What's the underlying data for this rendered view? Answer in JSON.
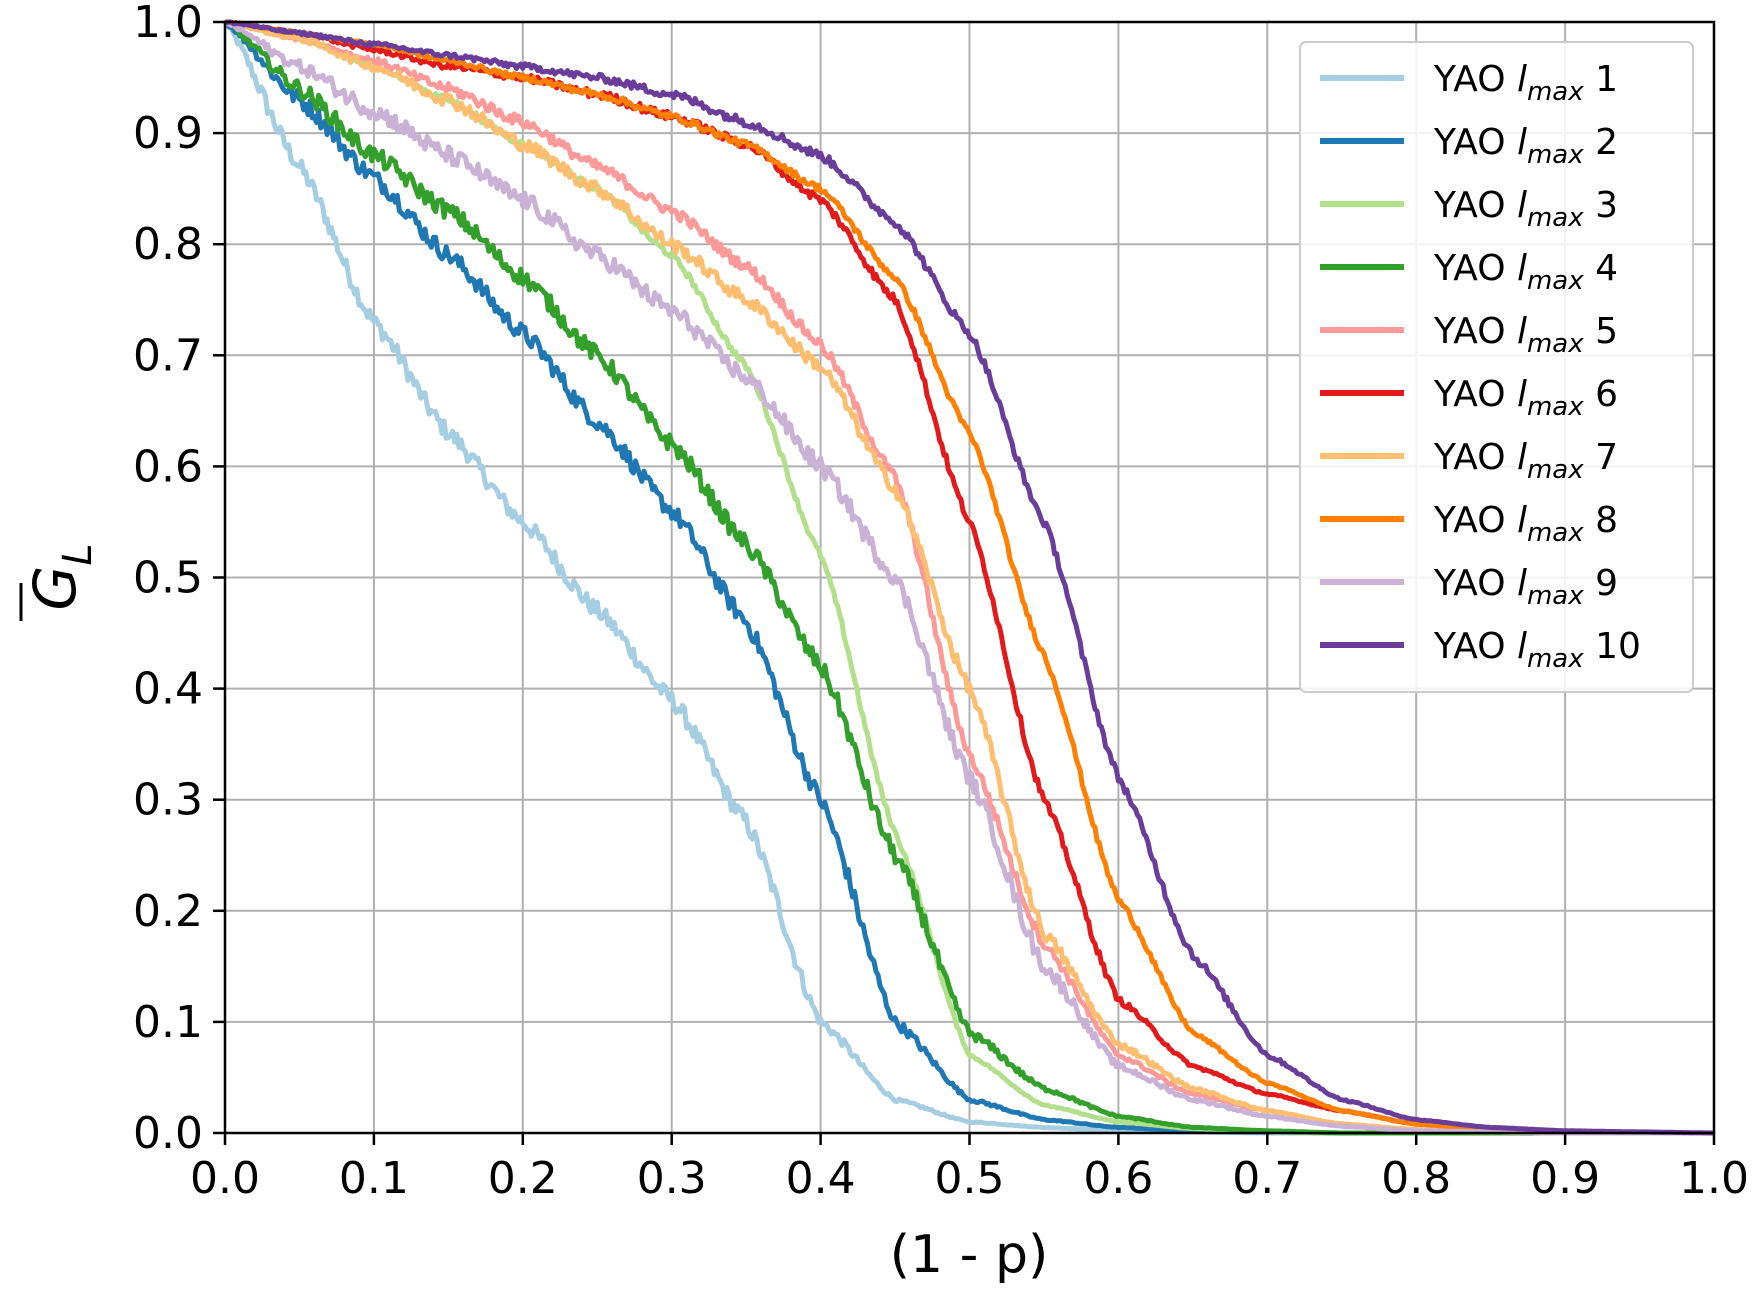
{
  "chart_data": {
    "type": "line",
    "xlabel": "(1 - p)",
    "ylabel_main": "G",
    "ylabel_sub": "L",
    "xlim": [
      0.0,
      1.0
    ],
    "ylim": [
      0.0,
      1.0
    ],
    "grid": true,
    "legend_position": "top-right",
    "x_ticks": [
      0.0,
      0.1,
      0.2,
      0.3,
      0.4,
      0.5,
      0.6,
      0.7,
      0.8,
      0.9,
      1.0
    ],
    "y_ticks": [
      0.0,
      0.1,
      0.2,
      0.3,
      0.4,
      0.5,
      0.6,
      0.7,
      0.8,
      0.9,
      1.0
    ],
    "x_tick_labels": [
      "0.0",
      "0.1",
      "0.2",
      "0.3",
      "0.4",
      "0.5",
      "0.6",
      "0.7",
      "0.8",
      "0.9",
      "1.0"
    ],
    "y_tick_labels": [
      "0.0",
      "0.1",
      "0.2",
      "0.3",
      "0.4",
      "0.5",
      "0.6",
      "0.7",
      "0.8",
      "0.9",
      "1.0"
    ],
    "x": [
      0.0,
      0.05,
      0.1,
      0.15,
      0.2,
      0.25,
      0.3,
      0.35,
      0.4,
      0.45,
      0.5,
      0.55,
      0.6,
      0.65,
      0.7,
      0.75,
      0.8,
      0.85,
      0.9,
      0.95,
      1.0
    ],
    "series": [
      {
        "name_prefix": "YAO ",
        "name_italic": "l",
        "name_sub": "max",
        "name_suffix": " 1",
        "color": "#a6cee3",
        "noise": 0.008,
        "values": [
          1.0,
          0.87,
          0.73,
          0.63,
          0.55,
          0.47,
          0.39,
          0.28,
          0.1,
          0.03,
          0.01,
          0.005,
          0.002,
          0.001,
          0.0,
          0.0,
          0.0,
          0.0,
          0.0,
          0.0,
          0.0
        ]
      },
      {
        "name_prefix": "YAO ",
        "name_italic": "l",
        "name_sub": "max",
        "name_suffix": " 2",
        "color": "#1f78b4",
        "noise": 0.008,
        "values": [
          1.0,
          0.93,
          0.86,
          0.79,
          0.72,
          0.64,
          0.56,
          0.46,
          0.3,
          0.1,
          0.03,
          0.012,
          0.005,
          0.002,
          0.001,
          0.0,
          0.0,
          0.0,
          0.0,
          0.0,
          0.0
        ]
      },
      {
        "name_prefix": "YAO ",
        "name_italic": "l",
        "name_sub": "max",
        "name_suffix": " 3",
        "color": "#b2df8a",
        "noise": 0.003,
        "values": [
          1.0,
          0.985,
          0.96,
          0.93,
          0.89,
          0.85,
          0.79,
          0.69,
          0.52,
          0.27,
          0.07,
          0.025,
          0.01,
          0.004,
          0.001,
          0.0,
          0.0,
          0.0,
          0.0,
          0.0,
          0.0
        ]
      },
      {
        "name_prefix": "YAO ",
        "name_italic": "l",
        "name_sub": "max",
        "name_suffix": " 4",
        "color": "#33a02c",
        "noise": 0.008,
        "values": [
          1.0,
          0.94,
          0.88,
          0.83,
          0.77,
          0.7,
          0.62,
          0.53,
          0.42,
          0.25,
          0.09,
          0.04,
          0.015,
          0.005,
          0.002,
          0.0,
          0.0,
          0.0,
          0.0,
          0.0,
          0.0
        ]
      },
      {
        "name_prefix": "YAO ",
        "name_italic": "l",
        "name_sub": "max",
        "name_suffix": " 5",
        "color": "#fb9a99",
        "noise": 0.005,
        "values": [
          1.0,
          0.985,
          0.965,
          0.94,
          0.91,
          0.87,
          0.83,
          0.78,
          0.71,
          0.59,
          0.34,
          0.17,
          0.07,
          0.035,
          0.02,
          0.008,
          0.003,
          0.001,
          0.0,
          0.0,
          0.0
        ]
      },
      {
        "name_prefix": "YAO ",
        "name_italic": "l",
        "name_sub": "max",
        "name_suffix": " 6",
        "color": "#e31a1c",
        "noise": 0.004,
        "values": [
          1.0,
          0.99,
          0.975,
          0.96,
          0.95,
          0.935,
          0.915,
          0.89,
          0.84,
          0.75,
          0.55,
          0.3,
          0.12,
          0.06,
          0.035,
          0.02,
          0.008,
          0.003,
          0.001,
          0.0,
          0.0
        ]
      },
      {
        "name_prefix": "YAO ",
        "name_italic": "l",
        "name_sub": "max",
        "name_suffix": " 7",
        "color": "#fdbf6f",
        "noise": 0.006,
        "values": [
          1.0,
          0.985,
          0.96,
          0.93,
          0.89,
          0.85,
          0.8,
          0.75,
          0.69,
          0.58,
          0.4,
          0.18,
          0.08,
          0.04,
          0.02,
          0.008,
          0.003,
          0.001,
          0.0,
          0.0,
          0.0
        ]
      },
      {
        "name_prefix": "YAO ",
        "name_italic": "l",
        "name_sub": "max",
        "name_suffix": " 8",
        "color": "#ff7f00",
        "noise": 0.003,
        "values": [
          1.0,
          0.99,
          0.98,
          0.965,
          0.95,
          0.935,
          0.915,
          0.89,
          0.85,
          0.77,
          0.63,
          0.43,
          0.21,
          0.09,
          0.045,
          0.02,
          0.008,
          0.003,
          0.001,
          0.0,
          0.0
        ]
      },
      {
        "name_prefix": "YAO ",
        "name_italic": "l",
        "name_sub": "max",
        "name_suffix": " 9",
        "color": "#cab2d6",
        "noise": 0.008,
        "values": [
          1.0,
          0.96,
          0.92,
          0.88,
          0.84,
          0.79,
          0.74,
          0.68,
          0.6,
          0.5,
          0.32,
          0.15,
          0.06,
          0.03,
          0.015,
          0.006,
          0.002,
          0.001,
          0.0,
          0.0,
          0.0
        ]
      },
      {
        "name_prefix": "YAO ",
        "name_italic": "l",
        "name_sub": "max",
        "name_suffix": " 10",
        "color": "#6a3d9a",
        "noise": 0.004,
        "values": [
          1.0,
          0.99,
          0.98,
          0.97,
          0.96,
          0.95,
          0.935,
          0.91,
          0.88,
          0.82,
          0.72,
          0.55,
          0.32,
          0.16,
          0.07,
          0.03,
          0.012,
          0.005,
          0.002,
          0.001,
          0.0
        ]
      }
    ]
  }
}
